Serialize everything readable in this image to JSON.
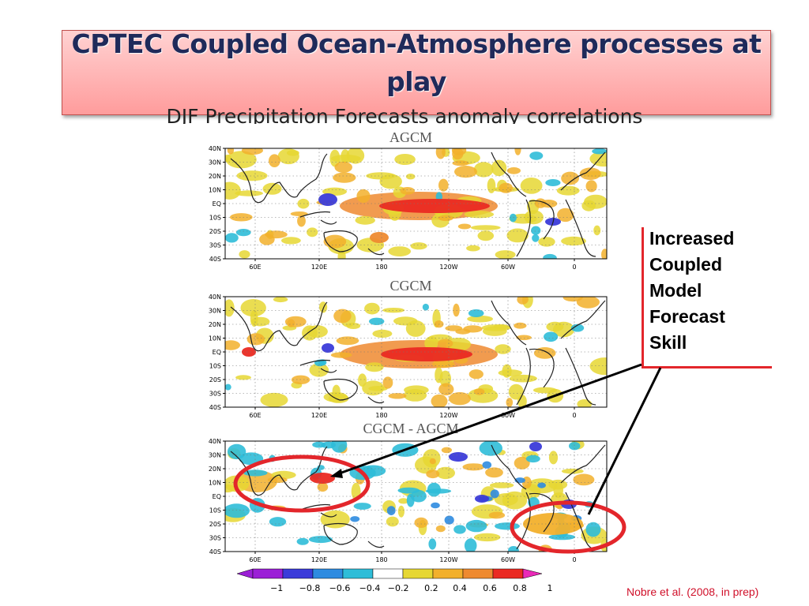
{
  "slide": {
    "title": "CPTEC Coupled Ocean-Atmosphere processes at play",
    "subtitle": "DJF Precipitation Forecasts anomaly correlations"
  },
  "panels": [
    {
      "title": "AGCM",
      "lat_labels": [
        "40N",
        "30N",
        "20N",
        "10N",
        "EQ",
        "10S",
        "20S",
        "30S",
        "40S"
      ],
      "lon_labels": [
        "60E",
        "120E",
        "180",
        "120W",
        "60W",
        "0"
      ]
    },
    {
      "title": "CGCM",
      "lat_labels": [
        "40N",
        "30N",
        "20N",
        "10N",
        "EQ",
        "10S",
        "20S",
        "30S",
        "40S"
      ],
      "lon_labels": [
        "60E",
        "120E",
        "180",
        "120W",
        "60W",
        "0"
      ]
    },
    {
      "title": "CGCM - AGCM",
      "lat_labels": [
        "40N",
        "30N",
        "20N",
        "10N",
        "EQ",
        "10S",
        "20S",
        "30S",
        "40S"
      ],
      "lon_labels": [
        "60E",
        "120E",
        "180",
        "120W",
        "60W",
        "0"
      ]
    }
  ],
  "colorbar": {
    "labels": [
      "−1",
      "−0.8",
      "−0.6",
      "−0.4",
      "−0.2",
      "0.2",
      "0.4",
      "0.6",
      "0.8",
      "1"
    ],
    "colors": [
      "#9b1fd6",
      "#3b3bd9",
      "#2e8be0",
      "#2fbdd8",
      "#ffffff",
      "#e6d733",
      "#f2b02c",
      "#ee8a30",
      "#ea2a22"
    ]
  },
  "callout": {
    "text": "Increased\nCoupled\nModel\nForecast\nSkill",
    "accent_color": "#e3262b"
  },
  "credit": "Nobre et al. (2008, in prep)"
}
